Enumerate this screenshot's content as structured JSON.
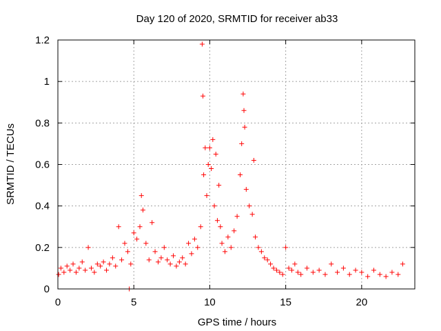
{
  "chart_data": {
    "type": "scatter",
    "title": "Day 120 of 2020, SRMTID for receiver ab33",
    "xlabel": "GPS time / hours",
    "ylabel": "SRMTID / TECUs",
    "xlim": [
      0,
      23.5
    ],
    "ylim": [
      0,
      1.2
    ],
    "x_ticks": [
      0,
      5,
      10,
      15,
      20
    ],
    "x_tick_labels": [
      "0",
      "5",
      "10",
      "15",
      "20"
    ],
    "y_ticks": [
      0,
      0.2,
      0.4,
      0.6,
      0.8,
      1.0,
      1.2
    ],
    "y_tick_labels": [
      "0",
      "0.2",
      "0.4",
      "0.6",
      "0.8",
      "1",
      "1.2"
    ],
    "grid": true,
    "marker": "+",
    "marker_color": "#ff0000",
    "series": [
      {
        "name": "SRMTID",
        "x": [
          0.05,
          0.2,
          0.4,
          0.6,
          0.8,
          1.0,
          1.2,
          1.4,
          1.6,
          1.8,
          2.0,
          2.2,
          2.4,
          2.6,
          2.8,
          3.0,
          3.2,
          3.4,
          3.6,
          3.8,
          4.0,
          4.2,
          4.4,
          4.6,
          4.8,
          5.0,
          5.2,
          5.4,
          5.5,
          5.6,
          5.8,
          6.0,
          6.2,
          6.4,
          6.6,
          6.8,
          7.0,
          7.2,
          7.4,
          7.6,
          7.8,
          8.0,
          8.2,
          8.4,
          8.6,
          8.8,
          9.0,
          9.2,
          9.4,
          9.5,
          9.55,
          9.6,
          9.7,
          9.8,
          9.9,
          10.0,
          10.1,
          10.2,
          10.3,
          10.4,
          10.5,
          10.6,
          10.7,
          10.8,
          11.0,
          11.2,
          11.4,
          11.6,
          11.8,
          12.0,
          12.1,
          12.2,
          12.25,
          12.3,
          12.4,
          12.6,
          12.8,
          12.9,
          13.0,
          13.2,
          13.4,
          13.6,
          13.8,
          14.0,
          14.2,
          14.4,
          14.6,
          14.8,
          15.0,
          15.2,
          15.4,
          15.6,
          15.8,
          16.0,
          16.4,
          16.8,
          17.2,
          17.6,
          18.0,
          18.4,
          18.8,
          19.2,
          19.6,
          20.0,
          20.4,
          20.8,
          21.2,
          21.6,
          22.0,
          22.4,
          22.7,
          4.7
        ],
        "y": [
          0.07,
          0.1,
          0.08,
          0.11,
          0.09,
          0.12,
          0.08,
          0.1,
          0.13,
          0.09,
          0.2,
          0.1,
          0.08,
          0.12,
          0.11,
          0.13,
          0.09,
          0.12,
          0.15,
          0.11,
          0.3,
          0.14,
          0.22,
          0.18,
          0.12,
          0.27,
          0.24,
          0.3,
          0.45,
          0.38,
          0.22,
          0.14,
          0.32,
          0.18,
          0.13,
          0.15,
          0.2,
          0.14,
          0.12,
          0.16,
          0.11,
          0.13,
          0.15,
          0.12,
          0.22,
          0.17,
          0.24,
          0.2,
          0.3,
          1.18,
          0.93,
          0.55,
          0.68,
          0.45,
          0.6,
          0.68,
          0.58,
          0.72,
          0.4,
          0.65,
          0.33,
          0.5,
          0.3,
          0.22,
          0.18,
          0.25,
          0.2,
          0.28,
          0.35,
          0.55,
          0.7,
          0.94,
          0.86,
          0.78,
          0.48,
          0.4,
          0.36,
          0.62,
          0.25,
          0.2,
          0.18,
          0.15,
          0.14,
          0.12,
          0.1,
          0.09,
          0.08,
          0.07,
          0.2,
          0.1,
          0.09,
          0.12,
          0.08,
          0.07,
          0.1,
          0.08,
          0.09,
          0.07,
          0.12,
          0.08,
          0.1,
          0.07,
          0.09,
          0.08,
          0.06,
          0.09,
          0.07,
          0.06,
          0.08,
          0.07,
          0.12,
          0.0
        ]
      }
    ]
  }
}
